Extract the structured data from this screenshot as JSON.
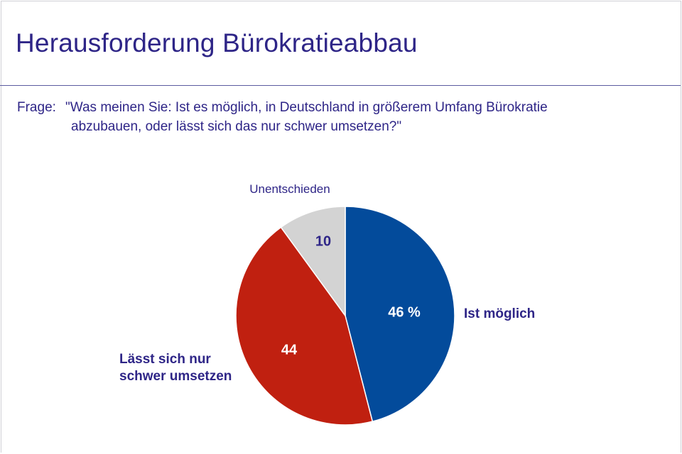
{
  "header": {
    "title": "Herausforderung Bürokratieabbau"
  },
  "question": {
    "label": "Frage:",
    "line1": "\"Was meinen Sie: Ist es möglich, in Deutschland in größerem Umfang Bürokratie",
    "line2": "abzubauen, oder lässt sich das nur schwer umsetzen?\""
  },
  "colors": {
    "text_accent": "#2e2587",
    "rule": "#5a5aa0"
  },
  "chart_data": {
    "type": "pie",
    "unit": "%",
    "slices": [
      {
        "name": "Ist möglich",
        "label_lines": [
          "Ist möglich"
        ],
        "value": 46,
        "value_label": "46 %",
        "color": "#034b9b",
        "value_color": "#ffffff"
      },
      {
        "name": "Lässt sich nur schwer umsetzen",
        "label_lines": [
          "Lässt sich nur",
          "schwer umsetzen"
        ],
        "value": 44,
        "value_label": "44",
        "color": "#c02010",
        "value_color": "#ffffff"
      },
      {
        "name": "Unentschieden",
        "label_lines": [
          "Unentschieden"
        ],
        "value": 10,
        "value_label": "10",
        "color": "#d3d3d3",
        "value_color": "#2e2587"
      }
    ],
    "start": "12 o'clock",
    "direction": "clockwise"
  }
}
